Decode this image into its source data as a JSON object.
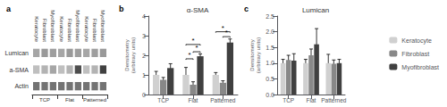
{
  "chart_data": [
    {
      "type": "heatmap",
      "label": "a",
      "x": [
        "Keratocyte",
        "Fibroblast",
        "Myofibroblast",
        "Keratocyte",
        "Fibroblast",
        "Myofibroblast",
        "Keratocyte",
        "Fibroblast",
        "Myofibroblast"
      ],
      "y": [
        "Lumican",
        "a-SMA",
        "Actin"
      ],
      "groups": [
        "TCP",
        "Flat",
        "Patterned"
      ],
      "cells": [
        [
          0.35,
          0.4,
          0.38,
          0.35,
          0.4,
          0.38,
          0.35,
          0.38,
          0.4
        ],
        [
          0.25,
          0.3,
          0.35,
          0.25,
          0.3,
          0.7,
          0.25,
          0.3,
          0.75
        ],
        [
          0.55,
          0.55,
          0.55,
          0.55,
          0.55,
          0.55,
          0.55,
          0.55,
          0.55
        ]
      ]
    },
    {
      "type": "bar",
      "label": "b",
      "title": "α-SMA",
      "ylabel": "Densitometry\n(arbitrary units)",
      "categories": [
        "TCP",
        "Flat",
        "Patterned"
      ],
      "series": [
        {
          "name": "Keratocyte",
          "color": "#d0d0d0",
          "values": [
            1.0,
            1.0,
            1.0
          ],
          "errors": [
            0.18,
            0.38,
            0.12
          ]
        },
        {
          "name": "Fibroblast",
          "color": "#888888",
          "values": [
            0.75,
            0.5,
            0.6
          ],
          "errors": [
            0.12,
            0.15,
            0.1
          ]
        },
        {
          "name": "Myofibroblast",
          "color": "#404040",
          "values": [
            1.35,
            1.95,
            2.65
          ],
          "errors": [
            0.22,
            0.12,
            0.18
          ]
        }
      ],
      "ylim": [
        0,
        4
      ],
      "yticks": [
        0,
        1,
        2,
        3,
        4
      ],
      "grid": false,
      "legend": "right",
      "annotations": [
        {
          "text": "*",
          "category": "Flat",
          "from": "Keratocyte",
          "to": "Myofibroblast",
          "y": 2.55
        },
        {
          "text": "*",
          "category": "Flat",
          "from": "Fibroblast",
          "to": "Myofibroblast",
          "y": 2.18
        },
        {
          "text": "*",
          "category": "Flat",
          "from": "Keratocyte",
          "to": "Fibroblast",
          "y": 1.82
        },
        {
          "text": "*",
          "category": "Patterned",
          "from": "Keratocyte",
          "to": "Myofibroblast",
          "y": 3.2
        },
        {
          "text": "*",
          "category": "Patterned",
          "from": "Fibroblast",
          "to": "Myofibroblast",
          "y": 2.95
        }
      ]
    },
    {
      "type": "bar",
      "label": "c",
      "title": "Lumican",
      "ylabel": "Densitometry\n(arbitrary units)",
      "categories": [
        "TCP",
        "Flat",
        "Patterned"
      ],
      "series": [
        {
          "name": "Keratocyte",
          "color": "#d0d0d0",
          "values": [
            1.0,
            1.0,
            1.0
          ],
          "errors": [
            0.12,
            0.12,
            0.28
          ]
        },
        {
          "name": "Fibroblast",
          "color": "#888888",
          "values": [
            1.1,
            1.25,
            0.98
          ],
          "errors": [
            0.15,
            0.2,
            0.12
          ]
        },
        {
          "name": "Myofibroblast",
          "color": "#404040",
          "values": [
            1.08,
            1.6,
            1.0
          ],
          "errors": [
            0.22,
            0.5,
            0.12
          ]
        }
      ],
      "ylim": [
        0,
        2.5
      ],
      "yticks": [
        {
          "value": 0,
          "label": "0.0"
        },
        0.5,
        {
          "value": 1,
          "label": "1.0"
        },
        1.5,
        {
          "value": 2,
          "label": "2.0"
        },
        2.5
      ],
      "grid": false,
      "legend": "right"
    }
  ]
}
